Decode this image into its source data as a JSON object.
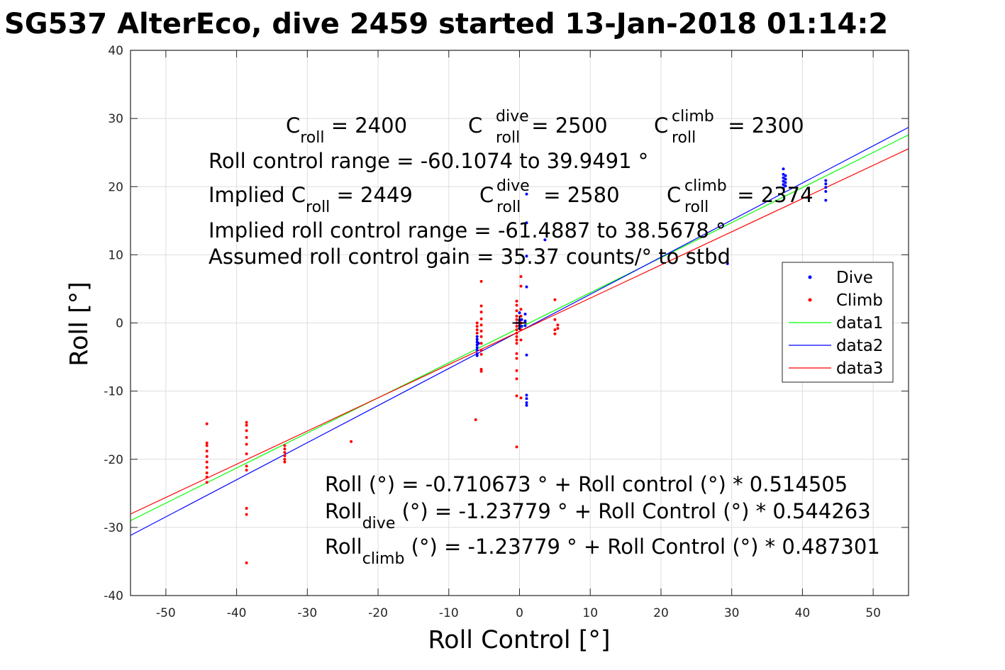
{
  "chart_data": {
    "type": "scatter",
    "title": "SG537 AlterEco, dive 2459 started 13-Jan-2018 01:14:2",
    "xlabel": "Roll Control [°]",
    "ylabel": "Roll [°]",
    "xlim": [
      -55,
      55
    ],
    "ylim": [
      -40,
      40
    ],
    "xticks": [
      "-50",
      "-40",
      "-30",
      "-20",
      "-10",
      "0",
      "10",
      "20",
      "30",
      "40",
      "50"
    ],
    "yticks": [
      "-40",
      "-30",
      "-20",
      "-10",
      "0",
      "10",
      "20",
      "30",
      "40"
    ],
    "grid": true,
    "legend_position": "right",
    "series": [
      {
        "name": "Dive",
        "kind": "points",
        "color": "#0000ff",
        "points": [
          [
            -6,
            -2
          ],
          [
            -6,
            -2.4
          ],
          [
            -6,
            -2.8
          ],
          [
            -6,
            -3.2
          ],
          [
            -6,
            -3.6
          ],
          [
            -6,
            -4
          ],
          [
            -6,
            -4.5
          ],
          [
            -6,
            -4.8
          ],
          [
            -5.8,
            -3
          ],
          [
            0,
            0
          ],
          [
            0,
            0.4
          ],
          [
            0,
            -0.4
          ],
          [
            0,
            1.5
          ],
          [
            0,
            -0.8
          ],
          [
            0.3,
            0.5
          ],
          [
            0.3,
            -0.5
          ],
          [
            0.8,
            1.3
          ],
          [
            0.8,
            0.3
          ],
          [
            0.8,
            -0.4
          ],
          [
            1,
            -4.7
          ],
          [
            1,
            5.3
          ],
          [
            1,
            9.8
          ],
          [
            1,
            14.7
          ],
          [
            1,
            18.9
          ],
          [
            1,
            -10.6
          ],
          [
            1,
            -11.1
          ],
          [
            1,
            -11.7
          ],
          [
            1,
            -12.1
          ],
          [
            3.6,
            12.2
          ],
          [
            37.3,
            19.8
          ],
          [
            37.3,
            20.3
          ],
          [
            37.3,
            20.8
          ],
          [
            37.3,
            21.3
          ],
          [
            37.3,
            21.8
          ],
          [
            37.3,
            22.6
          ],
          [
            37.6,
            20.1
          ],
          [
            37.6,
            20.6
          ],
          [
            37.6,
            21.1
          ],
          [
            37.6,
            21.6
          ],
          [
            43.3,
            18
          ],
          [
            43.3,
            19.3
          ],
          [
            43.3,
            19.9
          ],
          [
            43.3,
            20.4
          ],
          [
            43.3,
            20.9
          ],
          [
            29.4,
            8.7
          ]
        ]
      },
      {
        "name": "Climb",
        "kind": "points",
        "color": "#ff0000",
        "points": [
          [
            -44.2,
            -14.8
          ],
          [
            -44.2,
            -17.6
          ],
          [
            -44.2,
            -18
          ],
          [
            -44.2,
            -18.8
          ],
          [
            -44.2,
            -19.6
          ],
          [
            -44.2,
            -20.4
          ],
          [
            -44.2,
            -21.2
          ],
          [
            -44.2,
            -22
          ],
          [
            -44.2,
            -22.6
          ],
          [
            -44.2,
            -23.4
          ],
          [
            -38.6,
            -14.6
          ],
          [
            -38.6,
            -15
          ],
          [
            -38.6,
            -15.8
          ],
          [
            -38.6,
            -16.8
          ],
          [
            -38.6,
            -17.8
          ],
          [
            -38.6,
            -19.2
          ],
          [
            -38.6,
            -21
          ],
          [
            -38.6,
            -21.6
          ],
          [
            -38.6,
            -27.2
          ],
          [
            -38.6,
            -28.1
          ],
          [
            -38.6,
            -35.2
          ],
          [
            -33.2,
            -18
          ],
          [
            -33.2,
            -18.5
          ],
          [
            -33.2,
            -19
          ],
          [
            -33.2,
            -19.5
          ],
          [
            -33.2,
            -20
          ],
          [
            -33.2,
            -20.4
          ],
          [
            -23.8,
            -17.4
          ],
          [
            -6,
            0
          ],
          [
            -6,
            -0.5
          ],
          [
            -6,
            -1
          ],
          [
            -6,
            -1.5
          ],
          [
            -6.2,
            -14.2
          ],
          [
            -5.4,
            6.1
          ],
          [
            -5.4,
            2.5
          ],
          [
            -5.4,
            1.6
          ],
          [
            -5.4,
            0.6
          ],
          [
            -5.4,
            -0.3
          ],
          [
            -5.4,
            -1.2
          ],
          [
            -5.4,
            -2
          ],
          [
            -5.4,
            -3
          ],
          [
            -5.4,
            -4
          ],
          [
            -5.4,
            -4.6
          ],
          [
            -5.4,
            -6.8
          ],
          [
            -5.4,
            -7.1
          ],
          [
            -0.4,
            3.2
          ],
          [
            -0.4,
            2.6
          ],
          [
            -0.4,
            1.8
          ],
          [
            -0.4,
            1
          ],
          [
            -0.4,
            0.5
          ],
          [
            -0.4,
            0
          ],
          [
            -0.4,
            -0.5
          ],
          [
            -0.4,
            -1
          ],
          [
            -0.4,
            -1.5
          ],
          [
            -0.4,
            -2
          ],
          [
            -0.4,
            -2.5
          ],
          [
            -0.4,
            -3
          ],
          [
            -0.4,
            -4.5
          ],
          [
            -0.4,
            -5.2
          ],
          [
            -0.4,
            -7
          ],
          [
            -0.4,
            -8.2
          ],
          [
            -0.4,
            -10.7
          ],
          [
            -0.4,
            -18.2
          ],
          [
            0.2,
            6.8
          ],
          [
            0.2,
            5.4
          ],
          [
            0.2,
            2
          ],
          [
            0.2,
            1
          ],
          [
            0.2,
            0
          ],
          [
            0.2,
            -1
          ],
          [
            0.2,
            -2.5
          ],
          [
            0.2,
            -11
          ],
          [
            5,
            3.4
          ],
          [
            5,
            0.5
          ],
          [
            5,
            -1
          ],
          [
            5,
            -1.6
          ],
          [
            5.4,
            -0.3
          ],
          [
            5.4,
            -0.8
          ]
        ]
      },
      {
        "name": "data1",
        "kind": "line",
        "color": "#00ff00",
        "points": [
          [
            -55,
            -29.01
          ],
          [
            -30,
            -16.14
          ],
          [
            -10,
            -5.86
          ],
          [
            0,
            -0.71
          ],
          [
            10,
            4.43
          ],
          [
            30,
            14.72
          ],
          [
            55,
            27.59
          ]
        ]
      },
      {
        "name": "data2",
        "kind": "line",
        "color": "#0000ff",
        "points": [
          [
            -55,
            -31.17
          ],
          [
            -30,
            -17.57
          ],
          [
            -10,
            -6.68
          ],
          [
            0,
            -1.24
          ],
          [
            10,
            4.2
          ],
          [
            30,
            15.09
          ],
          [
            55,
            28.7
          ]
        ]
      },
      {
        "name": "data3",
        "kind": "line",
        "color": "#ff0000",
        "points": [
          [
            -55,
            -28.04
          ],
          [
            -30,
            -15.86
          ],
          [
            -10,
            -6.11
          ],
          [
            0,
            -1.24
          ],
          [
            10,
            3.64
          ],
          [
            30,
            13.38
          ],
          [
            55,
            25.56
          ]
        ]
      }
    ],
    "origin_marker": [
      0,
      0
    ],
    "annotations": {
      "croll_base": "C",
      "croll_sub": "roll",
      "croll_val": " = 2400",
      "cdive_base": "C",
      "cdive_sup": "dive",
      "cdive_sub": "roll",
      "cdive_val": " = 2500",
      "cclimb_base": "C",
      "cclimb_sup": "climb",
      "cclimb_sub": "roll",
      "cclimb_val": " = 2300",
      "range": "Roll control range = -60.1074 to 39.9491 °",
      "implied_prefix": "Implied C",
      "implied_sub": "roll",
      "implied_val": " = 2449",
      "idive_base": "C",
      "idive_sup": "dive",
      "idive_sub": "roll",
      "idive_val": " = 2580",
      "iclimb_base": "C",
      "iclimb_sup": "climb",
      "iclimb_sub": "roll",
      "iclimb_val": " = 2374",
      "implied_range": "Implied roll control range = -61.4887 to 38.5678 °",
      "gain": "Assumed roll control gain = 35.37 counts/° to stbd",
      "fit_all": "Roll (°) = -0.710673 ° + Roll control (°) * 0.514505",
      "fit_dive_base": "Roll",
      "fit_dive_sub": "dive",
      "fit_dive_rest": " (°) = -1.23779 ° + Roll Control (°) * 0.544263",
      "fit_climb_base": "Roll",
      "fit_climb_sub": "climb",
      "fit_climb_rest": " (°) = -1.23779 ° + Roll Control (°) * 0.487301"
    }
  }
}
